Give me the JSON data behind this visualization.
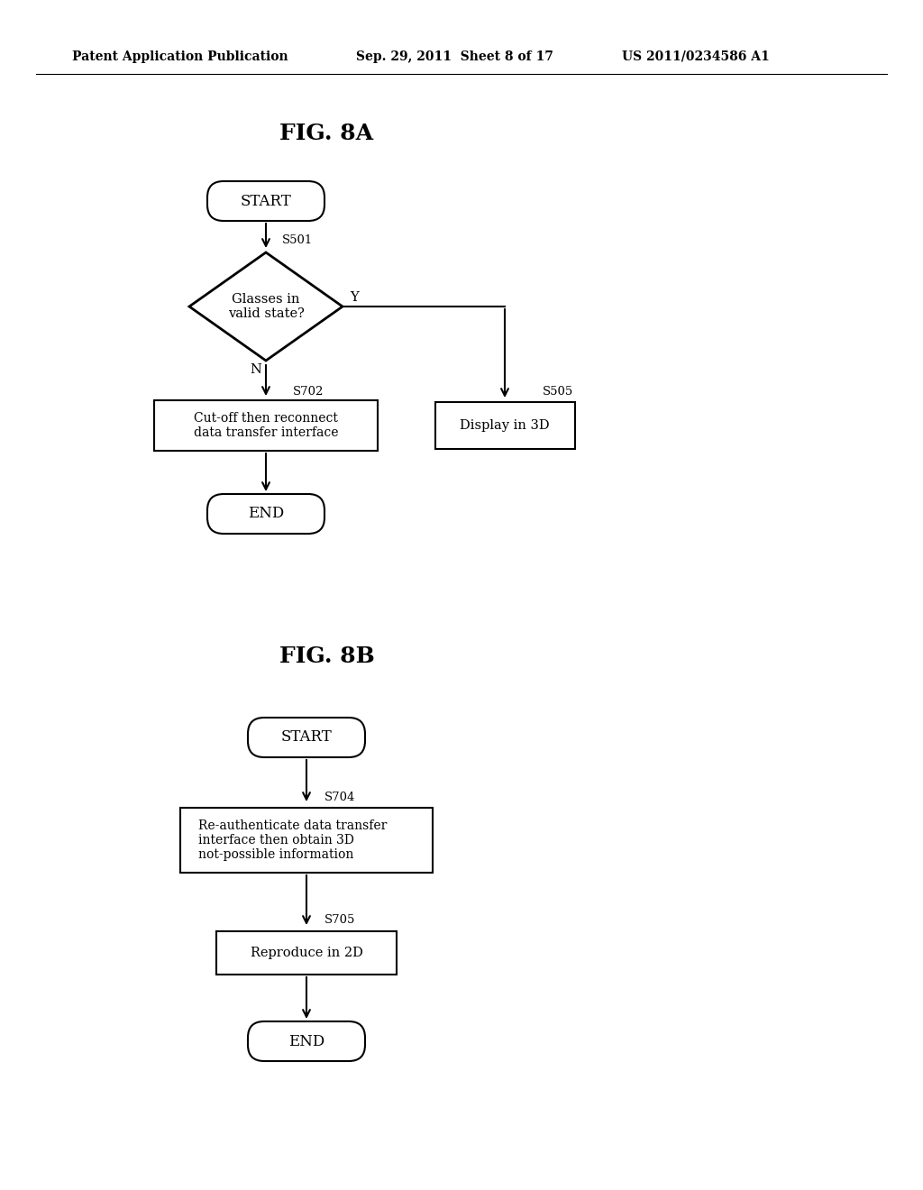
{
  "bg_color": "#ffffff",
  "header_left": "Patent Application Publication",
  "header_center": "Sep. 29, 2011  Sheet 8 of 17",
  "header_right": "US 2011/0234586 A1",
  "fig_title_a": "FIG. 8A",
  "fig_title_b": "FIG. 8B",
  "figA": {
    "start_label": "START",
    "end_label": "END",
    "diamond_label": "Glasses in\nvalid state?",
    "diamond_step": "S501",
    "yes_label": "Y",
    "no_label": "N",
    "box1_label": "Cut-off then reconnect\ndata transfer interface",
    "box1_step": "S702",
    "box2_label": "Display in 3D",
    "box2_step": "S505"
  },
  "figB": {
    "start_label": "START",
    "end_label": "END",
    "box1_label": "Re-authenticate data transfer\ninterface then obtain 3D\nnot-possible information",
    "box1_step": "S704",
    "box2_label": "Reproduce in 2D",
    "box2_step": "S705"
  }
}
